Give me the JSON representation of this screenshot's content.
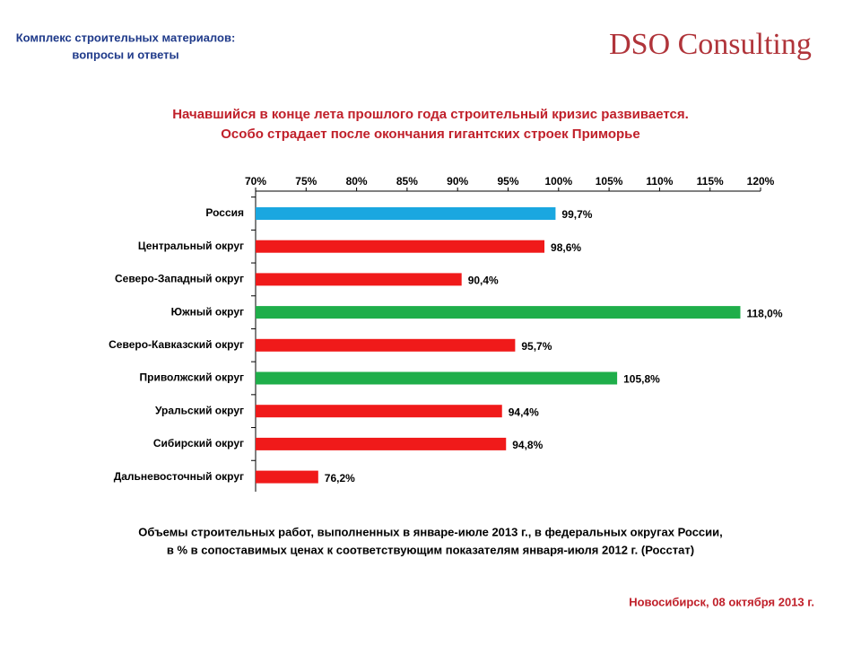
{
  "header": {
    "subtitle_lines": [
      "Комплекс строительных материалов:",
      "вопросы и ответы"
    ],
    "logo": "DSO Consulting"
  },
  "headline": [
    "Начавшийся в конце лета прошлого года строительный кризис развивается.",
    "Особо страдает после окончания гигантских строек Приморье"
  ],
  "chart_data": {
    "type": "hbar",
    "categories": [
      "Россия",
      "Центральный округ",
      "Северо-Западный округ",
      "Южный округ",
      "Северо-Кавказский округ",
      "Приволжский округ",
      "Уральский округ",
      "Сибирский округ",
      "Дальневосточный округ"
    ],
    "values": [
      99.7,
      98.6,
      90.4,
      118.0,
      95.7,
      105.8,
      94.4,
      94.8,
      76.2
    ],
    "value_labels": [
      "99,7%",
      "98,6%",
      "90,4%",
      "118,0%",
      "95,7%",
      "105,8%",
      "94,4%",
      "94,8%",
      "76,2%"
    ],
    "colors": [
      "#1aa7e0",
      "#f01a1a",
      "#f01a1a",
      "#1fae4a",
      "#f01a1a",
      "#1fae4a",
      "#f01a1a",
      "#f01a1a",
      "#f01a1a"
    ],
    "xlim": [
      70,
      120
    ],
    "xticks": [
      {
        "value": 70,
        "label": "70%"
      },
      {
        "value": 75,
        "label": "75%"
      },
      {
        "value": 80,
        "label": "80%"
      },
      {
        "value": 85,
        "label": "85%"
      },
      {
        "value": 90,
        "label": "90%"
      },
      {
        "value": 95,
        "label": "95%"
      },
      {
        "value": 100,
        "label": "100%"
      },
      {
        "value": 105,
        "label": "105%"
      },
      {
        "value": 110,
        "label": "110%"
      },
      {
        "value": 115,
        "label": "115%"
      },
      {
        "value": 120,
        "label": "120%"
      }
    ]
  },
  "caption": [
    "Объемы строительных работ, выполненных в январе-июле 2013 г., в федеральных округах России,",
    "в % в сопоставимых ценах к соответствующим показателям января-июля 2012 г. (Росстат)"
  ],
  "footer": "Новосибирск, 08 октября 2013 г."
}
